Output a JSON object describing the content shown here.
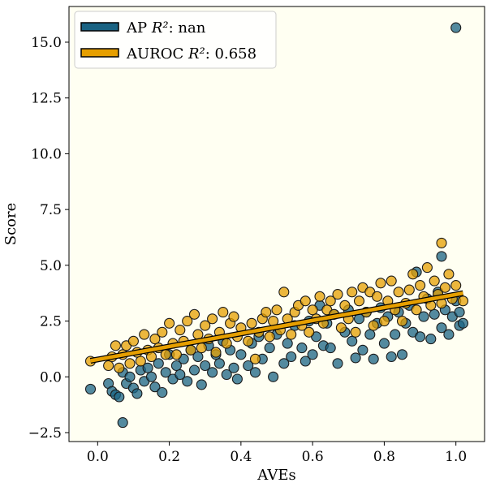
{
  "chart_data": {
    "type": "scatter",
    "xlabel": "AVEs",
    "ylabel": "Score",
    "xlim": [
      -0.08,
      1.08
    ],
    "ylim": [
      -2.9,
      16.6
    ],
    "xticks": [
      "0.0",
      "0.2",
      "0.4",
      "0.6",
      "0.8",
      "1.0"
    ],
    "yticks": [
      "−2.5",
      "0.0",
      "2.5",
      "5.0",
      "7.5",
      "10.0",
      "12.5",
      "15.0"
    ],
    "grid": false,
    "background": "#fffff2",
    "legend_position": "upper-left",
    "legend": [
      {
        "label_main": "AP ",
        "label_r2": "R²",
        "label_tail": ": nan",
        "color": "#1a6383"
      },
      {
        "label_main": "AUROC ",
        "label_r2": "R²",
        "label_tail": ": 0.658",
        "color": "#e69f00"
      }
    ],
    "fit_line": {
      "series": "AUROC",
      "x": [
        -0.02,
        1.02
      ],
      "y": [
        0.72,
        3.75
      ],
      "color": "#e69f00"
    },
    "series": [
      {
        "name": "AP",
        "color": "#1a6383",
        "points": [
          [
            -0.02,
            -0.55
          ],
          [
            0.03,
            -0.3
          ],
          [
            0.04,
            -0.65
          ],
          [
            0.05,
            -0.8
          ],
          [
            0.06,
            -0.9
          ],
          [
            0.07,
            -2.05
          ],
          [
            0.07,
            0.2
          ],
          [
            0.08,
            -0.3
          ],
          [
            0.09,
            0.0
          ],
          [
            0.1,
            -0.5
          ],
          [
            0.11,
            -0.75
          ],
          [
            0.12,
            0.3
          ],
          [
            0.13,
            -0.2
          ],
          [
            0.14,
            0.4
          ],
          [
            0.15,
            0.0
          ],
          [
            0.16,
            -0.45
          ],
          [
            0.17,
            0.6
          ],
          [
            0.18,
            -0.7
          ],
          [
            0.19,
            0.2
          ],
          [
            0.2,
            1.0
          ],
          [
            0.21,
            -0.1
          ],
          [
            0.22,
            0.5
          ],
          [
            0.23,
            0.1
          ],
          [
            0.24,
            0.8
          ],
          [
            0.25,
            -0.2
          ],
          [
            0.26,
            1.2
          ],
          [
            0.27,
            0.3
          ],
          [
            0.28,
            0.9
          ],
          [
            0.29,
            -0.35
          ],
          [
            0.3,
            0.5
          ],
          [
            0.31,
            1.4
          ],
          [
            0.32,
            0.2
          ],
          [
            0.33,
            1.0
          ],
          [
            0.34,
            0.6
          ],
          [
            0.35,
            1.6
          ],
          [
            0.36,
            0.1
          ],
          [
            0.37,
            1.2
          ],
          [
            0.38,
            0.4
          ],
          [
            0.39,
            -0.1
          ],
          [
            0.4,
            1.0
          ],
          [
            0.42,
            0.5
          ],
          [
            0.43,
            1.5
          ],
          [
            0.44,
            0.2
          ],
          [
            0.45,
            1.8
          ],
          [
            0.46,
            0.8
          ],
          [
            0.48,
            1.3
          ],
          [
            0.49,
            0.0
          ],
          [
            0.5,
            1.9
          ],
          [
            0.52,
            0.6
          ],
          [
            0.53,
            1.5
          ],
          [
            0.54,
            0.9
          ],
          [
            0.55,
            2.3
          ],
          [
            0.57,
            1.3
          ],
          [
            0.58,
            0.7
          ],
          [
            0.59,
            2.5
          ],
          [
            0.6,
            1.0
          ],
          [
            0.61,
            1.8
          ],
          [
            0.62,
            3.2
          ],
          [
            0.63,
            1.4
          ],
          [
            0.64,
            2.4
          ],
          [
            0.65,
            1.3
          ],
          [
            0.66,
            2.8
          ],
          [
            0.67,
            0.6
          ],
          [
            0.69,
            2.0
          ],
          [
            0.7,
            3.0
          ],
          [
            0.71,
            1.6
          ],
          [
            0.72,
            0.85
          ],
          [
            0.73,
            2.6
          ],
          [
            0.74,
            1.2
          ],
          [
            0.75,
            2.9
          ],
          [
            0.76,
            1.9
          ],
          [
            0.77,
            0.8
          ],
          [
            0.78,
            2.4
          ],
          [
            0.79,
            3.1
          ],
          [
            0.8,
            1.5
          ],
          [
            0.81,
            2.7
          ],
          [
            0.82,
            0.9
          ],
          [
            0.83,
            1.9
          ],
          [
            0.84,
            2.9
          ],
          [
            0.85,
            1.0
          ],
          [
            0.86,
            2.4
          ],
          [
            0.87,
            3.2
          ],
          [
            0.88,
            2.0
          ],
          [
            0.89,
            4.7
          ],
          [
            0.9,
            1.8
          ],
          [
            0.91,
            2.7
          ],
          [
            0.92,
            3.5
          ],
          [
            0.93,
            1.7
          ],
          [
            0.94,
            2.8
          ],
          [
            0.95,
            3.8
          ],
          [
            0.96,
            5.4
          ],
          [
            0.96,
            2.2
          ],
          [
            0.97,
            3.0
          ],
          [
            0.98,
            1.9
          ],
          [
            0.99,
            2.7
          ],
          [
            1.0,
            15.65
          ],
          [
            1.0,
            3.4
          ],
          [
            1.01,
            2.3
          ],
          [
            1.01,
            2.9
          ],
          [
            1.02,
            2.4
          ]
        ]
      },
      {
        "name": "AUROC",
        "color": "#e69f00",
        "points": [
          [
            -0.02,
            0.7
          ],
          [
            0.03,
            0.5
          ],
          [
            0.04,
            0.9
          ],
          [
            0.05,
            1.4
          ],
          [
            0.06,
            0.4
          ],
          [
            0.07,
            1.0
          ],
          [
            0.08,
            1.4
          ],
          [
            0.09,
            0.6
          ],
          [
            0.1,
            1.6
          ],
          [
            0.11,
            1.1
          ],
          [
            0.12,
            0.7
          ],
          [
            0.13,
            1.9
          ],
          [
            0.14,
            1.2
          ],
          [
            0.15,
            0.9
          ],
          [
            0.16,
            1.7
          ],
          [
            0.17,
            1.3
          ],
          [
            0.18,
            2.0
          ],
          [
            0.19,
            1.0
          ],
          [
            0.2,
            2.4
          ],
          [
            0.21,
            1.5
          ],
          [
            0.22,
            1.0
          ],
          [
            0.23,
            2.1
          ],
          [
            0.24,
            1.6
          ],
          [
            0.25,
            2.5
          ],
          [
            0.26,
            1.2
          ],
          [
            0.27,
            2.8
          ],
          [
            0.28,
            1.9
          ],
          [
            0.29,
            1.3
          ],
          [
            0.3,
            2.3
          ],
          [
            0.31,
            1.7
          ],
          [
            0.32,
            2.6
          ],
          [
            0.33,
            1.1
          ],
          [
            0.34,
            2.0
          ],
          [
            0.35,
            2.9
          ],
          [
            0.36,
            1.5
          ],
          [
            0.37,
            2.4
          ],
          [
            0.38,
            2.7
          ],
          [
            0.39,
            1.8
          ],
          [
            0.4,
            2.2
          ],
          [
            0.42,
            1.6
          ],
          [
            0.43,
            2.4
          ],
          [
            0.44,
            0.8
          ],
          [
            0.45,
            2.0
          ],
          [
            0.46,
            2.6
          ],
          [
            0.47,
            2.9
          ],
          [
            0.48,
            1.8
          ],
          [
            0.49,
            2.5
          ],
          [
            0.5,
            3.0
          ],
          [
            0.51,
            2.1
          ],
          [
            0.52,
            3.8
          ],
          [
            0.53,
            2.6
          ],
          [
            0.54,
            1.9
          ],
          [
            0.55,
            2.9
          ],
          [
            0.56,
            3.2
          ],
          [
            0.57,
            2.3
          ],
          [
            0.58,
            3.4
          ],
          [
            0.59,
            2.0
          ],
          [
            0.6,
            3.0
          ],
          [
            0.61,
            2.6
          ],
          [
            0.62,
            3.6
          ],
          [
            0.63,
            2.4
          ],
          [
            0.64,
            3.0
          ],
          [
            0.65,
            3.4
          ],
          [
            0.66,
            2.8
          ],
          [
            0.67,
            3.7
          ],
          [
            0.68,
            2.2
          ],
          [
            0.69,
            3.2
          ],
          [
            0.7,
            2.6
          ],
          [
            0.71,
            3.8
          ],
          [
            0.72,
            2.0
          ],
          [
            0.73,
            3.4
          ],
          [
            0.74,
            4.0
          ],
          [
            0.75,
            2.9
          ],
          [
            0.76,
            3.8
          ],
          [
            0.77,
            2.3
          ],
          [
            0.78,
            3.6
          ],
          [
            0.79,
            4.2
          ],
          [
            0.8,
            2.5
          ],
          [
            0.81,
            3.4
          ],
          [
            0.82,
            4.3
          ],
          [
            0.83,
            3.0
          ],
          [
            0.84,
            3.8
          ],
          [
            0.85,
            2.5
          ],
          [
            0.86,
            3.3
          ],
          [
            0.87,
            3.9
          ],
          [
            0.88,
            4.6
          ],
          [
            0.89,
            3.0
          ],
          [
            0.9,
            4.1
          ],
          [
            0.91,
            3.6
          ],
          [
            0.92,
            4.9
          ],
          [
            0.93,
            3.2
          ],
          [
            0.94,
            4.3
          ],
          [
            0.95,
            3.7
          ],
          [
            0.96,
            6.0
          ],
          [
            0.96,
            3.3
          ],
          [
            0.97,
            4.0
          ],
          [
            0.98,
            4.6
          ],
          [
            0.99,
            3.5
          ],
          [
            1.0,
            4.1
          ],
          [
            1.02,
            3.4
          ]
        ]
      }
    ]
  }
}
